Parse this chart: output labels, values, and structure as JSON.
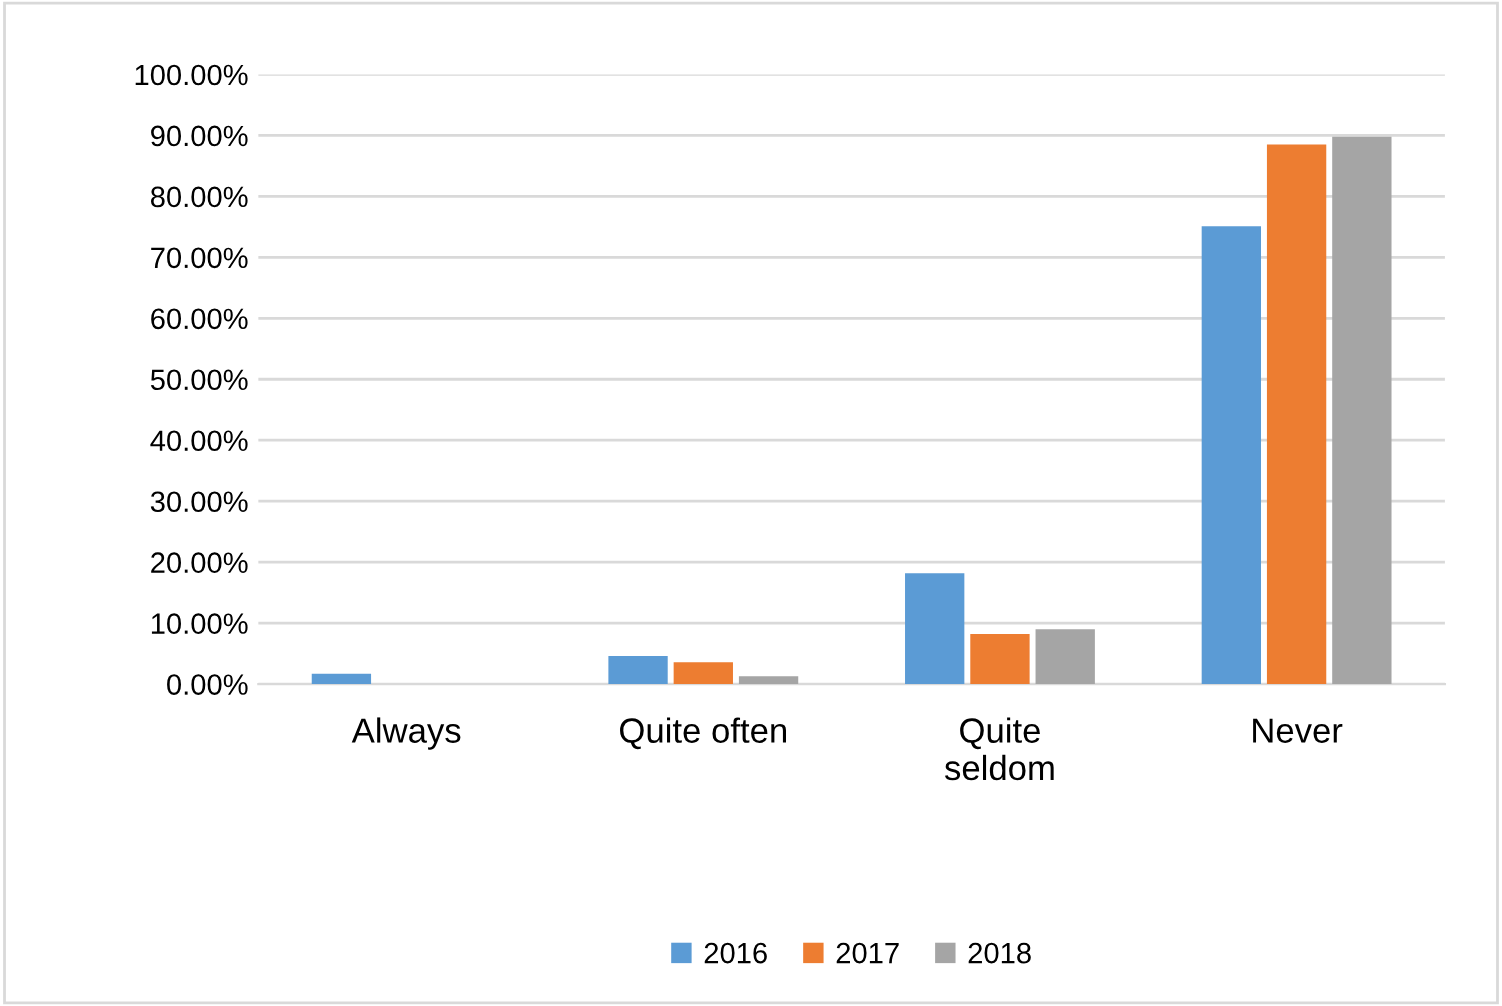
{
  "chart_data": {
    "type": "bar",
    "categories": [
      "Always",
      "Quite often",
      "Quite\nseldom",
      "Never"
    ],
    "series": [
      {
        "name": "2016",
        "color": "#5b9bd5",
        "values": [
          1.7,
          4.6,
          18.2,
          75.1
        ]
      },
      {
        "name": "2017",
        "color": "#ed7d31",
        "values": [
          0,
          3.6,
          8.2,
          88.5
        ]
      },
      {
        "name": "2018",
        "color": "#a5a5a5",
        "values": [
          0,
          1.3,
          9.0,
          89.8
        ]
      }
    ],
    "ylim": [
      0,
      100
    ],
    "yticks": [
      {
        "value": 0,
        "label": "0.00%"
      },
      {
        "value": 10,
        "label": "10.00%"
      },
      {
        "value": 20,
        "label": "20.00%"
      },
      {
        "value": 30,
        "label": "30.00%"
      },
      {
        "value": 40,
        "label": "40.00%"
      },
      {
        "value": 50,
        "label": "50.00%"
      },
      {
        "value": 60,
        "label": "60.00%"
      },
      {
        "value": 70,
        "label": "70.00%"
      },
      {
        "value": 80,
        "label": "80.00%"
      },
      {
        "value": 90,
        "label": "90.00%"
      },
      {
        "value": 100,
        "label": "100.00%"
      }
    ],
    "grid": "y",
    "legend": "bottom"
  }
}
